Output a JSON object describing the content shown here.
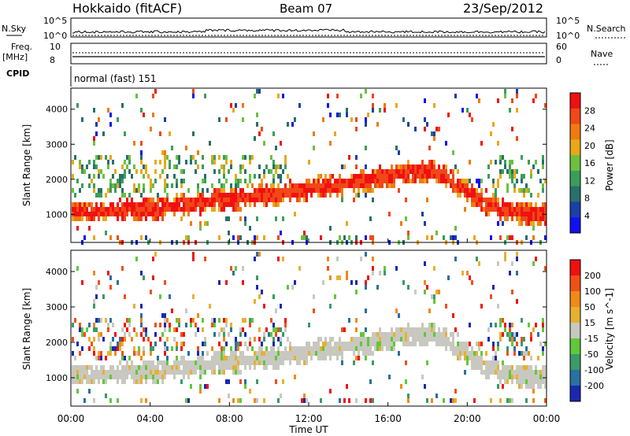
{
  "header": {
    "title": "Hokkaido (fitACF)",
    "beam": "Beam 07",
    "date": "23/Sep/2012"
  },
  "strips": {
    "nsky_label": "N.Sky",
    "nsky_ticks": [
      "10^5",
      "10^0"
    ],
    "nsearch_label": "N.Search",
    "freq_label_1": "Freq.",
    "freq_label_2": "[MHz]",
    "freq_ticks": [
      "10",
      "8"
    ],
    "nave_label": "Nave",
    "nave_ticks": [
      "60",
      "0"
    ],
    "cpid_label": "CPID",
    "cpid_value": "normal (fast) 151"
  },
  "chart_data": [
    {
      "type": "heatmap",
      "title": "",
      "xlabel": "",
      "ylabel": "Slant Range [km]",
      "xlim": [
        "00:00",
        "24:00"
      ],
      "ylim": [
        200,
        4600
      ],
      "yticks": [
        1000,
        2000,
        3000,
        4000
      ],
      "colorbar": {
        "label": "Power [dB]",
        "ticks": [
          "4",
          "8",
          "12",
          "16",
          "20",
          "24",
          "28"
        ],
        "colors": [
          "#1010f0",
          "#1a3fa8",
          "#2a6f6a",
          "#3a9e5a",
          "#6cc040",
          "#e8a81a",
          "#f07a10",
          "#f04818",
          "#f01010"
        ]
      },
      "series": [
        {
          "hours": [
            0,
            1,
            2,
            3,
            4,
            5,
            6,
            7,
            8,
            9,
            10,
            11,
            12,
            13,
            14,
            15,
            16,
            17,
            18,
            19,
            20,
            21,
            22,
            23,
            24
          ],
          "main_band_center_km": [
            1150,
            1150,
            1150,
            1180,
            1220,
            1280,
            1350,
            1430,
            1500,
            1560,
            1620,
            1700,
            1800,
            1880,
            1960,
            2050,
            2150,
            2250,
            2300,
            2100,
            1700,
            1350,
            1150,
            1100,
            1100
          ]
        }
      ]
    },
    {
      "type": "heatmap",
      "title": "",
      "xlabel": "Time UT",
      "ylabel": "Slant Range [km]",
      "xlim": [
        "00:00",
        "24:00"
      ],
      "ylim": [
        200,
        4600
      ],
      "xticks": [
        "00:00",
        "04:00",
        "08:00",
        "12:00",
        "16:00",
        "20:00",
        "00:00"
      ],
      "yticks": [
        1000,
        2000,
        3000,
        4000
      ],
      "colorbar": {
        "label": "Velocity [m s^-1]",
        "ticks": [
          "200",
          "100",
          "50",
          "15",
          "-15",
          "-50",
          "-100",
          "-200"
        ],
        "colors": [
          "#1a28b0",
          "#2a70a0",
          "#3a9a68",
          "#60c83a",
          "#c8c8c0",
          "#e8b030",
          "#f08a18",
          "#f05018",
          "#f01010"
        ]
      }
    }
  ]
}
